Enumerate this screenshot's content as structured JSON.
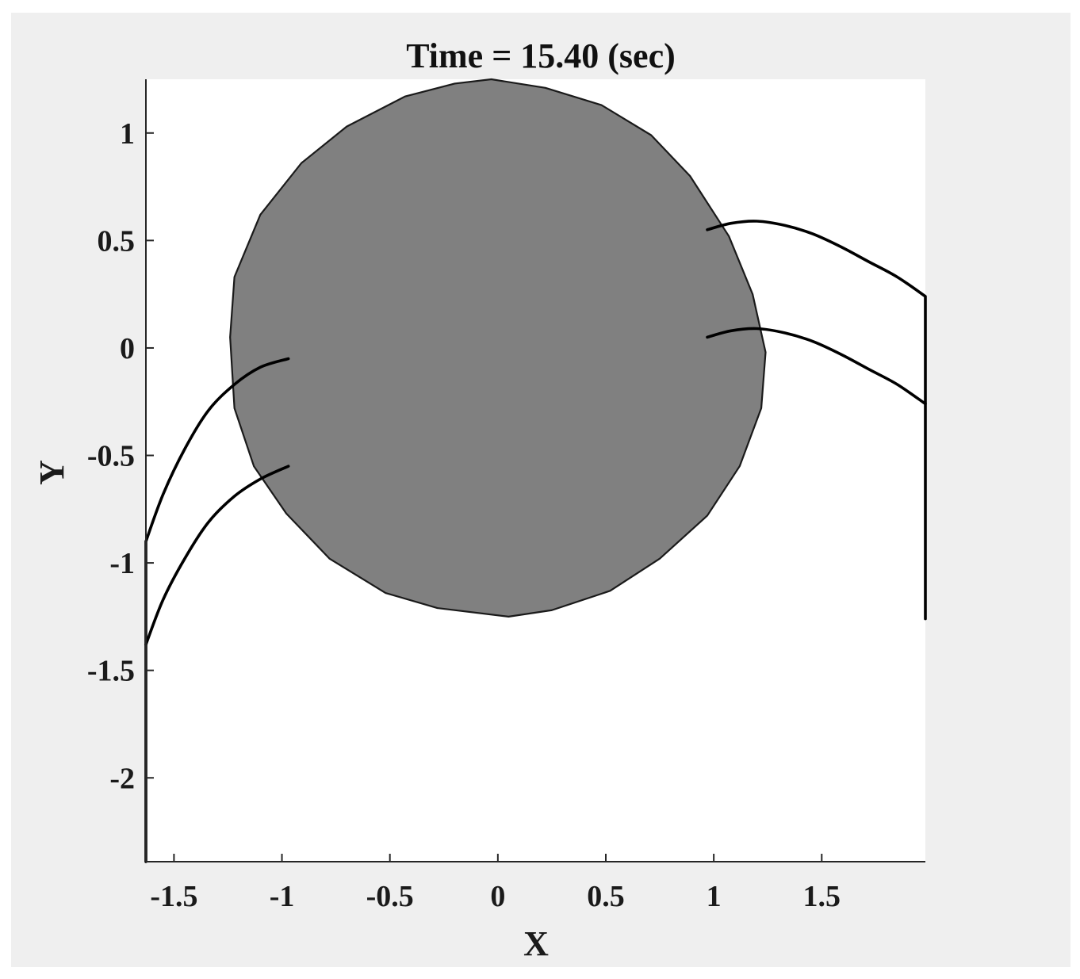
{
  "chart_data": {
    "type": "line",
    "title": "Time = 15.40 (sec)",
    "xlabel": "X",
    "ylabel": "Y",
    "xlim": [
      -1.63,
      1.98
    ],
    "ylim": [
      -2.39,
      1.25
    ],
    "grid": false,
    "legend": "none",
    "x_ticks": [
      {
        "value": -1.5,
        "label": "-1.5"
      },
      {
        "value": -1,
        "label": "-1"
      },
      {
        "value": -0.5,
        "label": "-0.5"
      },
      {
        "value": 0,
        "label": "0"
      },
      {
        "value": 0.5,
        "label": "0.5"
      },
      {
        "value": 1,
        "label": "1"
      },
      {
        "value": 1.5,
        "label": "1.5"
      }
    ],
    "y_ticks": [
      {
        "value": 1,
        "label": "1"
      },
      {
        "value": 0.5,
        "label": "0.5"
      },
      {
        "value": 0,
        "label": "0"
      },
      {
        "value": -0.5,
        "label": "-0.5"
      },
      {
        "value": -1,
        "label": "-1"
      },
      {
        "value": -1.5,
        "label": "-1.5"
      },
      {
        "value": -2,
        "label": "-2"
      }
    ],
    "shapes": [
      {
        "type": "polygon",
        "fill": "#808080",
        "points": [
          [
            -0.03,
            1.25
          ],
          [
            0.22,
            1.21
          ],
          [
            0.48,
            1.13
          ],
          [
            0.71,
            0.99
          ],
          [
            0.89,
            0.8
          ],
          [
            1.07,
            0.52
          ],
          [
            1.18,
            0.25
          ],
          [
            1.24,
            -0.02
          ],
          [
            1.22,
            -0.28
          ],
          [
            1.12,
            -0.55
          ],
          [
            0.97,
            -0.78
          ],
          [
            0.75,
            -0.98
          ],
          [
            0.52,
            -1.13
          ],
          [
            0.25,
            -1.22
          ],
          [
            0.05,
            -1.25
          ],
          [
            -0.28,
            -1.21
          ],
          [
            -0.52,
            -1.14
          ],
          [
            -0.78,
            -0.98
          ],
          [
            -0.98,
            -0.77
          ],
          [
            -1.13,
            -0.55
          ],
          [
            -1.22,
            -0.28
          ],
          [
            -1.24,
            0.05
          ],
          [
            -1.22,
            0.33
          ],
          [
            -1.1,
            0.62
          ],
          [
            -0.91,
            0.86
          ],
          [
            -0.7,
            1.03
          ],
          [
            -0.43,
            1.17
          ],
          [
            -0.2,
            1.23
          ]
        ]
      }
    ],
    "series": [
      {
        "color": "#000000",
        "points": [
          [
            -1.63,
            -2.39
          ],
          [
            -1.63,
            -0.9
          ],
          [
            -1.55,
            -0.68
          ],
          [
            -1.45,
            -0.47
          ],
          [
            -1.34,
            -0.29
          ],
          [
            -1.22,
            -0.17
          ],
          [
            -1.1,
            -0.09
          ],
          [
            -0.97,
            -0.05
          ]
        ]
      },
      {
        "color": "#000000",
        "points": [
          [
            -1.63,
            -1.38
          ],
          [
            -1.55,
            -1.17
          ],
          [
            -1.45,
            -0.98
          ],
          [
            -1.34,
            -0.81
          ],
          [
            -1.22,
            -0.69
          ],
          [
            -1.1,
            -0.61
          ],
          [
            -0.97,
            -0.55
          ]
        ]
      },
      {
        "color": "#000000",
        "points": [
          [
            0.97,
            0.55
          ],
          [
            1.08,
            0.58
          ],
          [
            1.2,
            0.59
          ],
          [
            1.33,
            0.57
          ],
          [
            1.46,
            0.53
          ],
          [
            1.59,
            0.47
          ],
          [
            1.72,
            0.4
          ],
          [
            1.85,
            0.33
          ],
          [
            1.98,
            0.24
          ],
          [
            1.98,
            -1.26
          ]
        ]
      },
      {
        "color": "#000000",
        "points": [
          [
            0.97,
            0.05
          ],
          [
            1.08,
            0.08
          ],
          [
            1.2,
            0.09
          ],
          [
            1.33,
            0.07
          ],
          [
            1.46,
            0.03
          ],
          [
            1.59,
            -0.03
          ],
          [
            1.72,
            -0.1
          ],
          [
            1.85,
            -0.17
          ],
          [
            1.98,
            -0.26
          ]
        ]
      }
    ]
  }
}
